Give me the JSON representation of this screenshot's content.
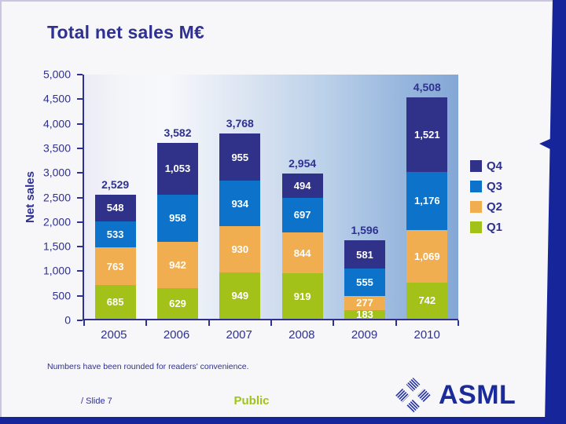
{
  "slide": {
    "footnote": "Numbers have been rounded for readers' convenience.",
    "slide_number": "/ Slide 7",
    "classification": "Public",
    "logo_text": "ASML"
  },
  "colors": {
    "navy_text": "#2e3192",
    "accent_band": "#16259a",
    "classification_green": "#9ec41a",
    "q1": "#a2c119",
    "q2": "#f0ae51",
    "q3": "#0d72c9",
    "q4": "#2f3288"
  },
  "chart_data": {
    "type": "bar",
    "stacked": true,
    "title": "Total net sales M€",
    "ylabel": "Net sales",
    "categories": [
      "2005",
      "2006",
      "2007",
      "2008",
      "2009",
      "2010"
    ],
    "series": [
      {
        "name": "Q1",
        "color": "#a2c119",
        "values": [
          685,
          629,
          949,
          919,
          183,
          742
        ]
      },
      {
        "name": "Q2",
        "color": "#f0ae51",
        "values": [
          763,
          942,
          930,
          844,
          277,
          1069
        ]
      },
      {
        "name": "Q3",
        "color": "#0d72c9",
        "values": [
          533,
          958,
          934,
          697,
          555,
          1176
        ]
      },
      {
        "name": "Q4",
        "color": "#2f3288",
        "values": [
          548,
          1053,
          955,
          494,
          581,
          1521
        ]
      }
    ],
    "totals": [
      2529,
      3582,
      3768,
      2954,
      1596,
      4508
    ],
    "ylim": [
      0,
      5000
    ],
    "ytick_step": 500,
    "grid": false,
    "legend_position": "right",
    "legend_order": [
      "Q4",
      "Q3",
      "Q2",
      "Q1"
    ]
  }
}
